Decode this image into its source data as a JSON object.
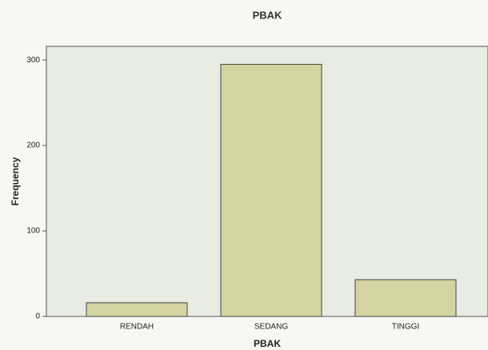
{
  "chart_data": {
    "type": "bar",
    "title": "PBAK",
    "x_label": "PBAK",
    "y_label": "Frequency",
    "categories": [
      "RENDAH",
      "SEDANG",
      "TINGGI"
    ],
    "values": [
      16,
      295,
      43
    ],
    "color": "#d4d4a2",
    "ylim": [
      0,
      316
    ],
    "yticks": [
      0,
      100,
      200,
      300
    ],
    "grid": false
  }
}
